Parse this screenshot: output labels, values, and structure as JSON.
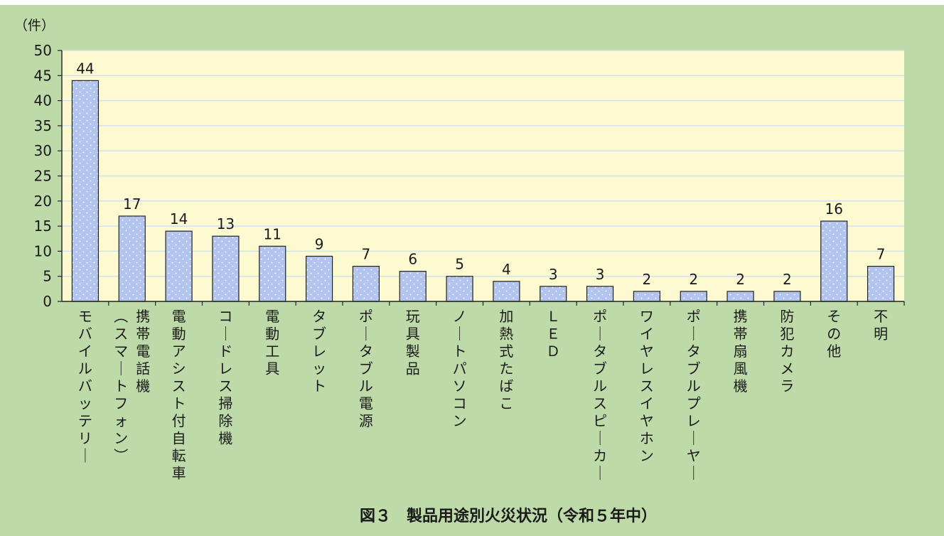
{
  "chart_data": {
    "type": "bar",
    "title": "図３　製品用途別火災状況（令和５年中）",
    "ylabel": "（件）",
    "xlabel": "",
    "ylim": [
      0,
      50
    ],
    "yticks": [
      0,
      5,
      10,
      15,
      20,
      25,
      30,
      35,
      40,
      45,
      50
    ],
    "grid": true,
    "categories": [
      [
        "モバイルバッテリー"
      ],
      [
        "携帯電話機",
        "（スマートフォン）"
      ],
      [
        "電動アシスト付自転車"
      ],
      [
        "コードレス掃除機"
      ],
      [
        "電動工具"
      ],
      [
        "タブレット"
      ],
      [
        "ポータブル電源"
      ],
      [
        "玩具製品"
      ],
      [
        "ノートパソコン"
      ],
      [
        "加熱式たばこ"
      ],
      [
        "ＬＥＤ"
      ],
      [
        "ポータブルスピーカー"
      ],
      [
        "ワイヤレスイヤホン"
      ],
      [
        "ポータブルプレーヤー"
      ],
      [
        "携帯扇風機"
      ],
      [
        "防犯カメラ"
      ],
      [
        "その他"
      ],
      [
        "不明"
      ]
    ],
    "values": [
      44,
      17,
      14,
      13,
      11,
      9,
      7,
      6,
      5,
      4,
      3,
      3,
      2,
      2,
      2,
      2,
      16,
      7
    ],
    "colors": {
      "background": "#bedaa9",
      "plot_area": "#fdfad2",
      "bar_fill": "#b3c5ed",
      "bar_dots": "#ffffff",
      "bar_stroke": "#222222",
      "grid": "#cfe3ef",
      "axis": "#222222"
    }
  }
}
